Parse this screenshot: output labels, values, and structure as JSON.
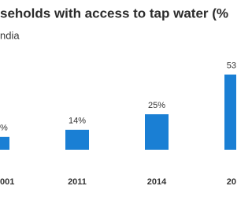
{
  "chart_data": {
    "type": "bar",
    "title": "seholds with access to tap water (%",
    "subtitle": "ndia",
    "categories": [
      "001",
      "2011",
      "2014",
      "20"
    ],
    "values": [
      9,
      14,
      25,
      53
    ],
    "value_labels": [
      "%",
      "14%",
      "25%",
      "53"
    ],
    "color": "#1a7fd4"
  }
}
